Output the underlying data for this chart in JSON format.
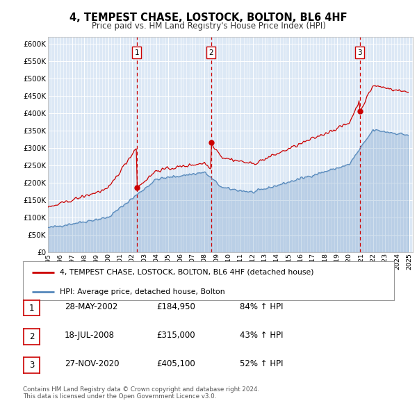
{
  "title": "4, TEMPEST CHASE, LOSTOCK, BOLTON, BL6 4HF",
  "subtitle": "Price paid vs. HM Land Registry's House Price Index (HPI)",
  "background_color": "#ffffff",
  "chart_bg_color": "#dce8f5",
  "grid_color": "#ffffff",
  "xmin": 1995.0,
  "xmax": 2025.3,
  "ymin": 0,
  "ymax": 620000,
  "yticks": [
    0,
    50000,
    100000,
    150000,
    200000,
    250000,
    300000,
    350000,
    400000,
    450000,
    500000,
    550000,
    600000
  ],
  "ytick_labels": [
    "£0",
    "£50K",
    "£100K",
    "£150K",
    "£200K",
    "£250K",
    "£300K",
    "£350K",
    "£400K",
    "£450K",
    "£500K",
    "£550K",
    "£600K"
  ],
  "sale_color": "#cc0000",
  "hpi_color": "#5588bb",
  "sale_label": "4, TEMPEST CHASE, LOSTOCK, BOLTON, BL6 4HF (detached house)",
  "hpi_label": "HPI: Average price, detached house, Bolton",
  "transactions": [
    {
      "num": 1,
      "date": "28-MAY-2002",
      "price": 184950,
      "price_str": "£184,950",
      "pct": "84%",
      "year": 2002.38
    },
    {
      "num": 2,
      "date": "18-JUL-2008",
      "price": 315000,
      "price_str": "£315,000",
      "pct": "43%",
      "year": 2008.54
    },
    {
      "num": 3,
      "date": "27-NOV-2020",
      "price": 405100,
      "price_str": "£405,100",
      "pct": "52%",
      "year": 2020.9
    }
  ],
  "footer": "Contains HM Land Registry data © Crown copyright and database right 2024.\nThis data is licensed under the Open Government Licence v3.0."
}
